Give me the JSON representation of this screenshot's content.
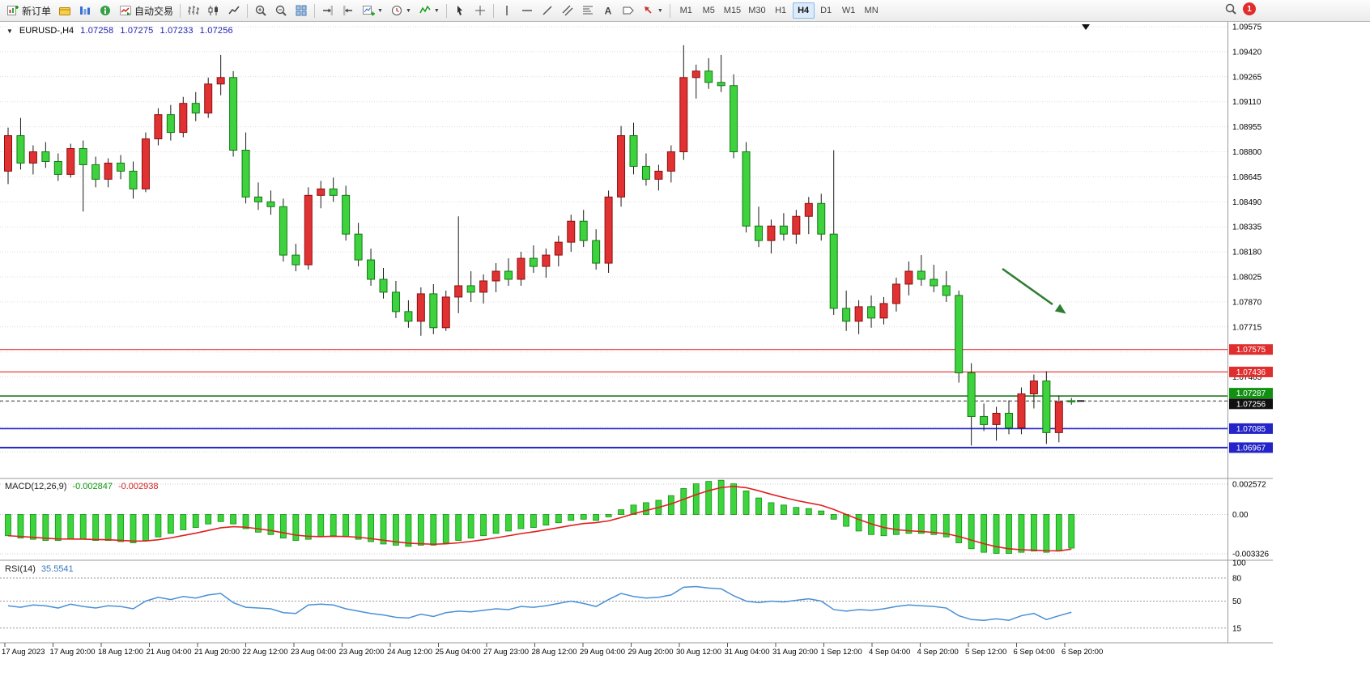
{
  "toolbar": {
    "new_order_label": "新订单",
    "auto_trading_label": "自动交易",
    "timeframes": [
      "M1",
      "M5",
      "M15",
      "M30",
      "H1",
      "H4",
      "D1",
      "W1",
      "MN"
    ],
    "active_timeframe": "H4",
    "notification_count": "1"
  },
  "chart_header": {
    "symbol_period": "EURUSD-,H4",
    "open": "1.07258",
    "high": "1.07275",
    "low": "1.07233",
    "close": "1.07256"
  },
  "chart_data": {
    "type": "candlestick",
    "title": "EURUSD- H4",
    "price_axis": {
      "tick_labels": [
        "1.09575",
        "1.09420",
        "1.09265",
        "1.09110",
        "1.08955",
        "1.08800",
        "1.08645",
        "1.08490",
        "1.08335",
        "1.08180",
        "1.08025",
        "1.07870",
        "1.07715",
        "1.07405"
      ],
      "grid": {
        "start": 1.09575,
        "step": 0.00155,
        "count": 18
      }
    },
    "time_axis_labels": [
      "17 Aug 2023",
      "17 Aug 20:00",
      "18 Aug 12:00",
      "21 Aug 04:00",
      "21 Aug 20:00",
      "22 Aug 12:00",
      "23 Aug 04:00",
      "23 Aug 20:00",
      "24 Aug 12:00",
      "25 Aug 04:00",
      "27 Aug 23:00",
      "28 Aug 12:00",
      "29 Aug 04:00",
      "29 Aug 20:00",
      "30 Aug 12:00",
      "31 Aug 04:00",
      "31 Aug 20:00",
      "1 Sep 12:00",
      "4 Sep 04:00",
      "4 Sep 20:00",
      "5 Sep 12:00",
      "6 Sep 04:00",
      "6 Sep 20:00"
    ],
    "candles_ohlc": [
      [
        1.0868,
        1.0895,
        1.086,
        1.089
      ],
      [
        1.089,
        1.0901,
        1.0869,
        1.0873
      ],
      [
        1.0873,
        1.0884,
        1.0866,
        1.088
      ],
      [
        1.088,
        1.0886,
        1.087,
        1.0874
      ],
      [
        1.0874,
        1.0879,
        1.0862,
        1.0866
      ],
      [
        1.0866,
        1.0885,
        1.0864,
        1.0882
      ],
      [
        1.0882,
        1.0887,
        1.0843,
        1.0872
      ],
      [
        1.0872,
        1.0877,
        1.0858,
        1.0863
      ],
      [
        1.0863,
        1.0876,
        1.0858,
        1.0873
      ],
      [
        1.0873,
        1.0878,
        1.0863,
        1.0868
      ],
      [
        1.0868,
        1.0874,
        1.0851,
        1.0857
      ],
      [
        1.0857,
        1.0892,
        1.0855,
        1.0888
      ],
      [
        1.0888,
        1.0907,
        1.0884,
        1.0903
      ],
      [
        1.0903,
        1.0909,
        1.0887,
        1.0892
      ],
      [
        1.0892,
        1.0914,
        1.0889,
        1.091
      ],
      [
        1.091,
        1.0917,
        1.0899,
        1.0904
      ],
      [
        1.0904,
        1.0926,
        1.0901,
        1.0922
      ],
      [
        1.0922,
        1.094,
        1.0915,
        1.0926
      ],
      [
        1.0926,
        1.093,
        1.0877,
        1.0881
      ],
      [
        1.0881,
        1.0892,
        1.0848,
        1.0852
      ],
      [
        1.0852,
        1.0861,
        1.0844,
        1.0849
      ],
      [
        1.0849,
        1.0856,
        1.0841,
        1.0846
      ],
      [
        1.0846,
        1.0851,
        1.0812,
        1.0816
      ],
      [
        1.0816,
        1.0823,
        1.0806,
        1.081
      ],
      [
        1.081,
        1.0858,
        1.0807,
        1.0853
      ],
      [
        1.0853,
        1.0862,
        1.0845,
        1.0857
      ],
      [
        1.0857,
        1.0864,
        1.0849,
        1.0853
      ],
      [
        1.0853,
        1.0859,
        1.0825,
        1.0829
      ],
      [
        1.0829,
        1.0836,
        1.0809,
        1.0813
      ],
      [
        1.0813,
        1.082,
        1.0797,
        1.0801
      ],
      [
        1.0801,
        1.0808,
        1.0789,
        1.0793
      ],
      [
        1.0793,
        1.08,
        1.0777,
        1.0781
      ],
      [
        1.0781,
        1.0788,
        1.0771,
        1.0775
      ],
      [
        1.0775,
        1.0796,
        1.0766,
        1.0792
      ],
      [
        1.0792,
        1.0798,
        1.0767,
        1.0771
      ],
      [
        1.0771,
        1.0794,
        1.0769,
        1.079
      ],
      [
        1.079,
        1.084,
        1.078,
        1.0797
      ],
      [
        1.0797,
        1.0806,
        1.0787,
        1.0793
      ],
      [
        1.0793,
        1.0804,
        1.0786,
        1.08
      ],
      [
        1.08,
        1.0811,
        1.0793,
        1.0806
      ],
      [
        1.0806,
        1.0814,
        1.0797,
        1.0801
      ],
      [
        1.0801,
        1.0818,
        1.0797,
        1.0814
      ],
      [
        1.0814,
        1.0822,
        1.0805,
        1.0809
      ],
      [
        1.0809,
        1.082,
        1.0802,
        1.0816
      ],
      [
        1.0816,
        1.0828,
        1.0809,
        1.0824
      ],
      [
        1.0824,
        1.0841,
        1.0818,
        1.0837
      ],
      [
        1.0837,
        1.0844,
        1.0821,
        1.0825
      ],
      [
        1.0825,
        1.0832,
        1.0807,
        1.0811
      ],
      [
        1.0811,
        1.0856,
        1.0805,
        1.0852
      ],
      [
        1.0852,
        1.0896,
        1.0846,
        1.089
      ],
      [
        1.089,
        1.0898,
        1.0866,
        1.0871
      ],
      [
        1.0871,
        1.0879,
        1.0859,
        1.0863
      ],
      [
        1.0863,
        1.0872,
        1.0856,
        1.0868
      ],
      [
        1.0868,
        1.0884,
        1.0861,
        1.088
      ],
      [
        1.088,
        1.0946,
        1.0875,
        1.0926
      ],
      [
        1.0926,
        1.0934,
        1.0913,
        1.093
      ],
      [
        1.093,
        1.0938,
        1.0919,
        1.0923
      ],
      [
        1.0923,
        1.094,
        1.0917,
        1.0921
      ],
      [
        1.0921,
        1.0928,
        1.0876,
        1.088
      ],
      [
        1.088,
        1.0886,
        1.083,
        1.0834
      ],
      [
        1.0834,
        1.0846,
        1.0821,
        1.0825
      ],
      [
        1.0825,
        1.0838,
        1.0817,
        1.0834
      ],
      [
        1.0834,
        1.0842,
        1.0825,
        1.0829
      ],
      [
        1.0829,
        1.0844,
        1.0823,
        1.084
      ],
      [
        1.084,
        1.0852,
        1.0829,
        1.0848
      ],
      [
        1.0848,
        1.0854,
        1.0825,
        1.0829
      ],
      [
        1.0829,
        1.0881,
        1.0779,
        1.0783
      ],
      [
        1.0783,
        1.0794,
        1.0769,
        1.0775
      ],
      [
        1.0775,
        1.0788,
        1.0767,
        1.0784
      ],
      [
        1.0784,
        1.0791,
        1.0771,
        1.0777
      ],
      [
        1.0777,
        1.079,
        1.0773,
        1.0786
      ],
      [
        1.0786,
        1.0802,
        1.0781,
        1.0798
      ],
      [
        1.0798,
        1.0812,
        1.0791,
        1.0806
      ],
      [
        1.0806,
        1.0816,
        1.0797,
        1.0801
      ],
      [
        1.0801,
        1.081,
        1.0793,
        1.0797
      ],
      [
        1.0797,
        1.0806,
        1.0787,
        1.0791
      ],
      [
        1.0791,
        1.0794,
        1.0737,
        1.0743
      ],
      [
        1.0743,
        1.0749,
        1.0698,
        1.0716
      ],
      [
        1.0716,
        1.0724,
        1.0707,
        1.0711
      ],
      [
        1.0711,
        1.0722,
        1.0701,
        1.0718
      ],
      [
        1.0718,
        1.0726,
        1.0705,
        1.0709
      ],
      [
        1.0709,
        1.0734,
        1.0705,
        1.073
      ],
      [
        1.073,
        1.0742,
        1.0721,
        1.0738
      ],
      [
        1.0738,
        1.0744,
        1.0699,
        1.0706
      ],
      [
        1.0706,
        1.0729,
        1.07,
        1.0725
      ],
      [
        1.07258,
        1.07275,
        1.07233,
        1.07256
      ]
    ],
    "hlines": [
      {
        "price": 1.07575,
        "label": "1.07575",
        "color": "#e02e2e",
        "width": 1.2
      },
      {
        "price": 1.07436,
        "label": "1.07436",
        "color": "#e02e2e",
        "width": 1.2
      },
      {
        "price": 1.07287,
        "label": "1.07287",
        "color": "#0d6b0d",
        "width": 1.6,
        "box_color": "#129012",
        "box_dy": -3.5
      },
      {
        "price": 1.07085,
        "label": "1.07085",
        "color": "#2424c8",
        "width": 1.6
      },
      {
        "price": 1.06967,
        "label": "1.06967",
        "color": "#2424c8",
        "width": 2
      }
    ],
    "current_price": {
      "price": 1.07256,
      "label": "1.07256",
      "box_color": "#101010",
      "box_dy": 3.5
    },
    "annotations": [
      {
        "type": "arrow",
        "direction": "down-right",
        "color": "#2e7d32"
      }
    ],
    "macd": {
      "label": "MACD(12,26,9)",
      "value_main": "-0.002847",
      "value_signal": "-0.002938",
      "scale": [
        {
          "v": 0.002572,
          "t": "0.002572"
        },
        {
          "v": 0,
          "t": "0.00"
        },
        {
          "v": -0.003326,
          "t": "-0.003326"
        }
      ],
      "histogram": [
        -0.0018,
        -0.002,
        -0.0021,
        -0.0022,
        -0.0022,
        -0.0021,
        -0.0021,
        -0.0022,
        -0.0022,
        -0.0023,
        -0.0024,
        -0.0022,
        -0.0019,
        -0.0016,
        -0.0013,
        -0.0011,
        -0.0008,
        -0.0006,
        -0.0008,
        -0.0012,
        -0.0015,
        -0.0017,
        -0.002,
        -0.0022,
        -0.0021,
        -0.0019,
        -0.0018,
        -0.0019,
        -0.0021,
        -0.0023,
        -0.0025,
        -0.0026,
        -0.0027,
        -0.0026,
        -0.0026,
        -0.0024,
        -0.0022,
        -0.002,
        -0.0018,
        -0.0016,
        -0.0014,
        -0.0012,
        -0.0011,
        -0.0009,
        -0.0007,
        -0.0005,
        -0.0004,
        -0.0005,
        -0.0002,
        0.0004,
        0.0008,
        0.001,
        0.0012,
        0.0016,
        0.0022,
        0.0026,
        0.0028,
        0.0029,
        0.0026,
        0.002,
        0.0014,
        0.001,
        0.0008,
        0.0006,
        0.0005,
        0.0003,
        -0.0004,
        -0.001,
        -0.0014,
        -0.0017,
        -0.0018,
        -0.0017,
        -0.0016,
        -0.0016,
        -0.0017,
        -0.0019,
        -0.0024,
        -0.0029,
        -0.0032,
        -0.0033,
        -0.0033,
        -0.0032,
        -0.0031,
        -0.0032,
        -0.0031,
        -0.002847
      ],
      "signal": [
        -0.0018,
        -0.00186,
        -0.00193,
        -0.00201,
        -0.00207,
        -0.00208,
        -0.00209,
        -0.00212,
        -0.00214,
        -0.00219,
        -0.00225,
        -0.00224,
        -0.00214,
        -0.00198,
        -0.00178,
        -0.00158,
        -0.00135,
        -0.00113,
        -0.00103,
        -0.00108,
        -0.00121,
        -0.00136,
        -0.00155,
        -0.00175,
        -0.00185,
        -0.00187,
        -0.00185,
        -0.00186,
        -0.00193,
        -0.00204,
        -0.00218,
        -0.00231,
        -0.00243,
        -0.00248,
        -0.00252,
        -0.00248,
        -0.0024,
        -0.00228,
        -0.00214,
        -0.00198,
        -0.0018,
        -0.00162,
        -0.00147,
        -0.0013,
        -0.00112,
        -0.00093,
        -0.00077,
        -0.00069,
        -0.00054,
        -0.00026,
        6e-05,
        0.00034,
        0.0006,
        0.0009,
        0.00129,
        0.00168,
        0.00202,
        0.00228,
        0.00238,
        0.00227,
        0.00201,
        0.00171,
        0.00144,
        0.00119,
        0.00098,
        0.00078,
        0.00043,
        0.0,
        -0.00042,
        -0.0008,
        -0.0011,
        -0.00128,
        -0.00138,
        -0.00144,
        -0.00152,
        -0.00163,
        -0.00186,
        -0.00217,
        -0.00248,
        -0.00273,
        -0.0029,
        -0.00299,
        -0.00302,
        -0.00307,
        -0.00308,
        -0.002938
      ]
    },
    "rsi": {
      "label": "RSI(14)",
      "value": "35.5541",
      "scale": [
        {
          "v": 100,
          "t": "100",
          "line": false
        },
        {
          "v": 80,
          "t": "80",
          "line": true
        },
        {
          "v": 50,
          "t": "50",
          "line": true
        },
        {
          "v": 15,
          "t": "15",
          "line": true
        }
      ],
      "values": [
        44,
        42,
        45,
        44,
        41,
        46,
        43,
        41,
        44,
        43,
        40,
        50,
        55,
        52,
        56,
        54,
        58,
        60,
        48,
        42,
        41,
        40,
        35,
        34,
        45,
        46,
        45,
        40,
        37,
        34,
        32,
        29,
        28,
        33,
        30,
        35,
        37,
        36,
        38,
        40,
        39,
        43,
        42,
        44,
        47,
        50,
        47,
        43,
        52,
        60,
        56,
        54,
        55,
        58,
        68,
        69,
        67,
        66,
        57,
        50,
        48,
        50,
        49,
        51,
        53,
        50,
        39,
        37,
        39,
        38,
        40,
        43,
        45,
        44,
        43,
        41,
        31,
        26,
        25,
        27,
        25,
        31,
        34,
        26,
        31,
        35.5541
      ]
    }
  }
}
